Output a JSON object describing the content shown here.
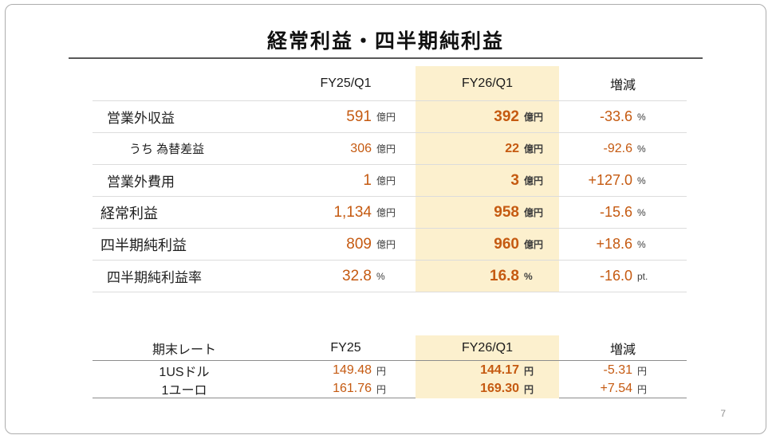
{
  "slide": {
    "title": "経常利益・四半期純利益",
    "page_number": "7"
  },
  "main_table": {
    "col_fy25": "FY25/Q1",
    "col_fy26": "FY26/Q1",
    "col_change": "増減",
    "rows": [
      {
        "label": "営業外収益",
        "fy25": "591",
        "fy25_unit": "億円",
        "fy26": "392",
        "fy26_unit": "億円",
        "change": "-33.6",
        "change_unit": "%"
      },
      {
        "label": "うち 為替差益",
        "fy25": "306",
        "fy25_unit": "億円",
        "fy26": "22",
        "fy26_unit": "億円",
        "change": "-92.6",
        "change_unit": "%"
      },
      {
        "label": "営業外費用",
        "fy25": "1",
        "fy25_unit": "億円",
        "fy26": "3",
        "fy26_unit": "億円",
        "change": "+127.0",
        "change_unit": "%"
      },
      {
        "label": "経常利益",
        "fy25": "1,134",
        "fy25_unit": "億円",
        "fy26": "958",
        "fy26_unit": "億円",
        "change": "-15.6",
        "change_unit": "%"
      },
      {
        "label": "四半期純利益",
        "fy25": "809",
        "fy25_unit": "億円",
        "fy26": "960",
        "fy26_unit": "億円",
        "change": "+18.6",
        "change_unit": "%"
      },
      {
        "label": "四半期純利益率",
        "fy25": "32.8",
        "fy25_unit": "%",
        "fy26": "16.8",
        "fy26_unit": "%",
        "change": "-16.0",
        "change_unit": "pt."
      }
    ]
  },
  "rate_table": {
    "col_label": "期末レート",
    "col_fy25": "FY25",
    "col_fy26": "FY26/Q1",
    "col_change": "増減",
    "rows": [
      {
        "label": "1USドル",
        "fy25": "149.48",
        "fy25_unit": "円",
        "fy26": "144.17",
        "fy26_unit": "円",
        "change": "-5.31",
        "change_unit": "円"
      },
      {
        "label": "1ユーロ",
        "fy25": "161.76",
        "fy25_unit": "円",
        "fy26": "169.30",
        "fy26_unit": "円",
        "change": "+7.54",
        "change_unit": "円"
      }
    ]
  },
  "colors": {
    "accent": "#C55A11",
    "highlight": "#FCF0CE",
    "label_text": "#1F1F1F",
    "unit_text": "#3D3D3D",
    "line_light": "#DCDCDC",
    "line_dark": "#8C8C8C",
    "title_rule": "#595959",
    "page_number": "#909090",
    "border": "#ADADAD"
  }
}
